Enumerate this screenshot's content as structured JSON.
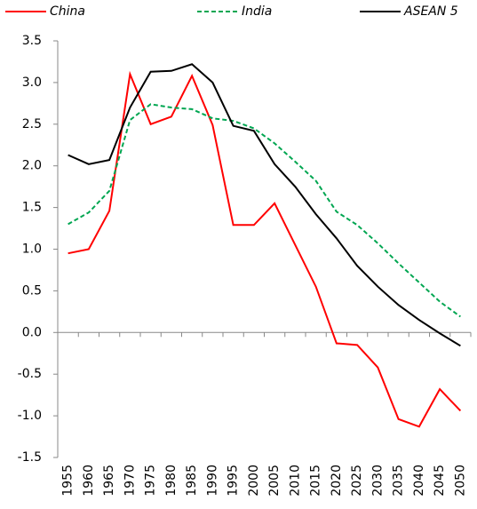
{
  "chart_data": {
    "type": "line",
    "categories": [
      "1955",
      "1960",
      "1965",
      "1970",
      "1975",
      "1980",
      "1985",
      "1990",
      "1995",
      "2000",
      "2005",
      "2010",
      "2015",
      "2020",
      "2025",
      "2030",
      "2035",
      "2040",
      "2045",
      "2050"
    ],
    "series": [
      {
        "name": "China",
        "color": "#ff0000",
        "dashed": false,
        "values": [
          0.95,
          1.0,
          1.46,
          3.1,
          2.5,
          2.59,
          3.08,
          2.49,
          1.29,
          1.29,
          1.55,
          1.05,
          0.55,
          -0.13,
          -0.15,
          -0.42,
          -1.04,
          -1.13,
          -0.68,
          -0.94
        ]
      },
      {
        "name": "India",
        "color": "#00a651",
        "dashed": true,
        "values": [
          1.3,
          1.44,
          1.7,
          2.55,
          2.74,
          2.7,
          2.68,
          2.57,
          2.54,
          2.45,
          2.27,
          2.05,
          1.82,
          1.45,
          1.29,
          1.07,
          0.83,
          0.6,
          0.37,
          0.19
        ]
      },
      {
        "name": "ASEAN 5",
        "color": "#000000",
        "dashed": false,
        "values": [
          2.13,
          2.02,
          2.07,
          2.7,
          3.13,
          3.14,
          3.22,
          3.0,
          2.48,
          2.42,
          2.02,
          1.75,
          1.42,
          1.13,
          0.8,
          0.55,
          0.33,
          0.15,
          -0.01,
          -0.16
        ]
      }
    ],
    "ylim": [
      -1.5,
      3.5
    ],
    "yticks": [
      -1.5,
      {
        "value": -1,
        "label": "-1.0"
      },
      -0.5,
      {
        "value": 0,
        "label": "0.0"
      },
      0.5,
      {
        "value": 1,
        "label": "1.0"
      },
      1.5,
      {
        "value": 2,
        "label": "2.0"
      },
      2.5,
      {
        "value": 3,
        "label": "3.0"
      },
      3.5
    ]
  }
}
